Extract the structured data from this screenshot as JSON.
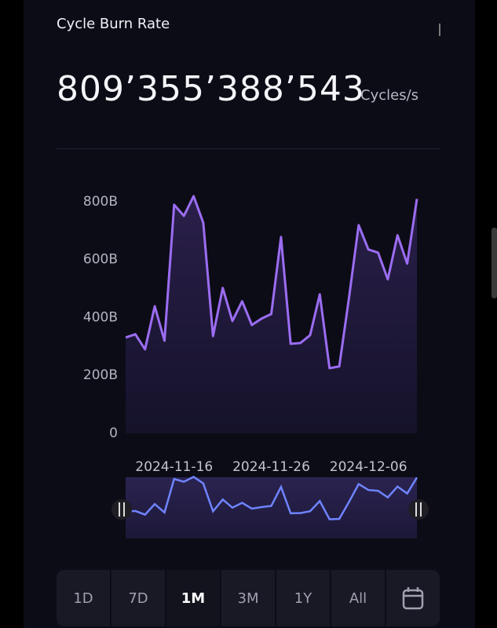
{
  "header": {
    "title": "Cycle Burn Rate",
    "value": "809’355’388’543",
    "unit": "Cycles/s"
  },
  "chart_data": {
    "type": "area",
    "x": [
      "2024-11-11",
      "2024-11-12",
      "2024-11-13",
      "2024-11-14",
      "2024-11-15",
      "2024-11-16",
      "2024-11-17",
      "2024-11-18",
      "2024-11-19",
      "2024-11-20",
      "2024-11-21",
      "2024-11-22",
      "2024-11-23",
      "2024-11-24",
      "2024-11-25",
      "2024-11-26",
      "2024-11-27",
      "2024-11-28",
      "2024-11-29",
      "2024-11-30",
      "2024-12-01",
      "2024-12-02",
      "2024-12-03",
      "2024-12-04",
      "2024-12-05",
      "2024-12-06",
      "2024-12-07",
      "2024-12-08",
      "2024-12-09",
      "2024-12-10",
      "2024-12-11"
    ],
    "series": [
      {
        "color": "#9b6df2",
        "values": [
          331000000000,
          342000000000,
          290000000000,
          439000000000,
          320000000000,
          789000000000,
          751000000000,
          819000000000,
          727000000000,
          336000000000,
          502000000000,
          388000000000,
          456000000000,
          374000000000,
          396000000000,
          412000000000,
          678000000000,
          309000000000,
          312000000000,
          339000000000,
          480000000000,
          225000000000,
          231000000000,
          466000000000,
          719000000000,
          635000000000,
          624000000000,
          532000000000,
          684000000000,
          586000000000,
          809355388543
        ]
      }
    ],
    "xlim": [
      "2024-11-11",
      "2024-12-11"
    ],
    "xticks": [
      "2024-11-16",
      "2024-11-26",
      "2024-12-06"
    ],
    "ylim": [
      0,
      900000000000
    ],
    "yticks": [
      0,
      {
        "value": 200000000000,
        "label": "200B"
      },
      {
        "value": 400000000000,
        "label": "400B"
      },
      {
        "value": 600000000000,
        "label": "600B"
      },
      {
        "value": 800000000000,
        "label": "800B"
      }
    ],
    "navigator_color": "#6f84ff"
  },
  "range_buttons": [
    "1D",
    "7D",
    "1M",
    "3M",
    "1Y",
    "All"
  ],
  "active_range": "1M"
}
